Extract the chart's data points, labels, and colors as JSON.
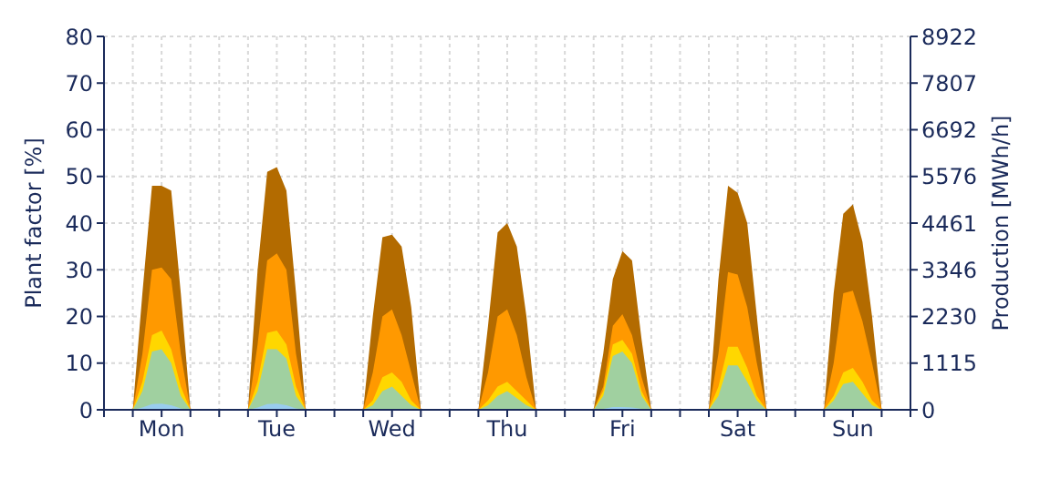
{
  "chart_data": {
    "type": "area",
    "ylabel": "Plant factor [%]",
    "y2label": "Production [MWh/h]",
    "categories": [
      null,
      null,
      null,
      null,
      null,
      null,
      "Mon",
      null,
      null,
      null,
      null,
      null,
      null,
      null,
      null,
      null,
      null,
      null,
      "Tue",
      null,
      null,
      null,
      null,
      null,
      null,
      null,
      null,
      null,
      null,
      null,
      "Wed",
      null,
      null,
      null,
      null,
      null,
      null,
      null,
      null,
      null,
      null,
      null,
      "Thu",
      null,
      null,
      null,
      null,
      null,
      null,
      null,
      null,
      null,
      null,
      null,
      "Fri",
      null,
      null,
      null,
      null,
      null,
      null,
      null,
      null,
      null,
      null,
      null,
      "Sat",
      null,
      null,
      null,
      null,
      null,
      null,
      null,
      null,
      null,
      null,
      null,
      "Sun",
      null,
      null,
      null,
      null,
      null
    ],
    "series": [
      {
        "color": "#b36b00",
        "values": [
          0,
          0,
          0,
          0,
          25,
          48,
          48,
          47,
          25,
          0,
          0,
          0,
          0,
          0,
          0,
          0,
          30,
          51,
          52,
          47,
          25,
          0,
          0,
          0,
          0,
          0,
          0,
          0,
          20,
          37,
          37.5,
          35,
          22,
          0,
          0,
          0,
          0,
          0,
          0,
          0,
          18,
          38,
          40,
          35,
          20,
          0,
          0,
          0,
          0,
          0,
          0,
          0,
          12,
          28,
          34,
          32,
          15,
          0,
          0,
          0,
          0,
          0,
          0,
          0,
          28,
          48,
          46.5,
          40,
          20,
          0,
          0,
          0,
          0,
          0,
          0,
          0,
          25,
          42,
          44,
          36,
          20,
          0,
          0,
          0
        ]
      },
      {
        "color": "#ff9900",
        "values": [
          0,
          0,
          0,
          0,
          12,
          30,
          30.5,
          28,
          12,
          0,
          0,
          0,
          0,
          0,
          0,
          0,
          14,
          32,
          33.5,
          30,
          12,
          0,
          0,
          0,
          0,
          0,
          0,
          0,
          8,
          20,
          21.5,
          16,
          8,
          0,
          0,
          0,
          0,
          0,
          0,
          0,
          8,
          20,
          21.5,
          16,
          7,
          0,
          0,
          0,
          0,
          0,
          0,
          0,
          5,
          18,
          20.5,
          16,
          7,
          0,
          0,
          0,
          0,
          0,
          0,
          0,
          12,
          29.5,
          29,
          22,
          10,
          0,
          0,
          0,
          0,
          0,
          0,
          0,
          10,
          25,
          25.5,
          19,
          10,
          0,
          0,
          0
        ]
      },
      {
        "color": "#ffd700",
        "values": [
          0,
          0,
          0,
          0,
          6,
          16,
          17,
          13,
          5,
          0,
          0,
          0,
          0,
          0,
          0,
          0,
          6,
          16.5,
          17,
          14,
          5,
          0,
          0,
          0,
          0,
          0,
          0,
          0,
          2,
          7,
          8,
          6,
          2,
          0,
          0,
          0,
          0,
          0,
          0,
          0,
          2,
          5,
          6,
          4,
          2,
          0,
          0,
          0,
          0,
          0,
          0,
          0,
          4,
          14,
          15,
          12,
          4,
          0,
          0,
          0,
          0,
          0,
          0,
          0,
          5,
          13.5,
          13.5,
          9,
          3,
          0,
          0,
          0,
          0,
          0,
          0,
          0,
          3,
          8,
          9,
          6,
          2,
          0,
          0,
          0
        ]
      },
      {
        "color": "#a0d0a0",
        "values": [
          0,
          0,
          0,
          0,
          4,
          12.5,
          13,
          10,
          3,
          0,
          0,
          0,
          0,
          0,
          0,
          0,
          4,
          13,
          13,
          11,
          3,
          0,
          0,
          0,
          0,
          0,
          0,
          0,
          1,
          4,
          5,
          3,
          1,
          0,
          0,
          0,
          0,
          0,
          0,
          0,
          1,
          3,
          4,
          2.5,
          1,
          0,
          0,
          0,
          0,
          0,
          0,
          0,
          3,
          11.5,
          12.5,
          10,
          3,
          0,
          0,
          0,
          0,
          0,
          0,
          0,
          3,
          9.5,
          9.5,
          6,
          2,
          0,
          0,
          0,
          0,
          0,
          0,
          0,
          2,
          5.5,
          6,
          3.5,
          1,
          0,
          0,
          0
        ]
      },
      {
        "color": "#99ccee",
        "values": [
          0,
          0,
          0,
          0,
          0.5,
          1.2,
          1.3,
          1,
          0.3,
          0,
          0,
          0,
          0,
          0,
          0,
          0,
          0.5,
          1.2,
          1.3,
          1,
          0.3,
          0,
          0,
          0,
          0,
          0,
          0,
          0,
          0,
          0,
          0,
          0,
          0,
          0,
          0,
          0,
          0,
          0,
          0,
          0,
          0,
          0,
          0,
          0,
          0,
          0,
          0,
          0,
          0,
          0,
          0,
          0,
          0.2,
          0.6,
          0.6,
          0.5,
          0.2,
          0,
          0,
          0,
          0,
          0,
          0,
          0,
          0,
          0,
          0,
          0,
          0,
          0,
          0,
          0,
          0,
          0,
          0,
          0,
          0,
          0,
          0,
          0,
          0,
          0,
          0,
          0
        ]
      }
    ],
    "ylim": [
      0,
      80
    ],
    "yticks": [
      0,
      10,
      20,
      30,
      40,
      50,
      60,
      70,
      80
    ],
    "y2lim": [
      0,
      8922
    ],
    "y2ticks": [
      0,
      1115,
      2230,
      3346,
      4461,
      5576,
      6692,
      7807,
      8922
    ],
    "grid": true
  }
}
